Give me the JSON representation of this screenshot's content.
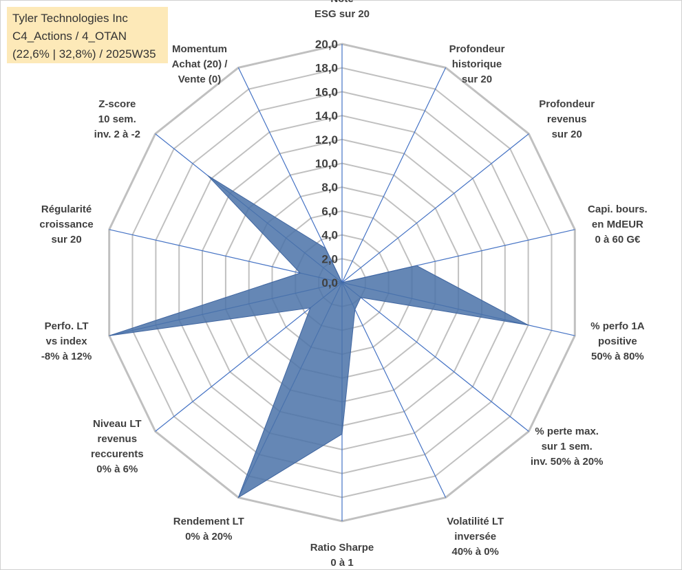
{
  "info": {
    "line1": "Tyler Technologies Inc",
    "line2": "C4_Actions / 4_OTAN",
    "line3": "(22,6% | 32,8%) / 2025W35"
  },
  "colors": {
    "grid": "#c0c0c0",
    "spoke": "#4472c4",
    "fill": "#4a72a8",
    "text": "#404040"
  },
  "chart_data": {
    "type": "radar",
    "title": "",
    "rmin": 0,
    "rmax": 20,
    "tick_step": 2,
    "tick_labels": [
      "0,0",
      "2,0",
      "4,0",
      "6,0",
      "8,0",
      "10,0",
      "12,0",
      "14,0",
      "16,0",
      "18,0",
      "20,0"
    ],
    "axes": [
      {
        "label": [
          "Note",
          "ESG sur 20"
        ],
        "value": 0
      },
      {
        "label": [
          "Profondeur",
          "historique",
          "sur 20"
        ],
        "value": 0
      },
      {
        "label": [
          "Profondeur",
          "revenus",
          "sur 20"
        ],
        "value": 0
      },
      {
        "label": [
          "Capi. bours.",
          "en MdEUR",
          "0 à 60 G€"
        ],
        "value": 6.4
      },
      {
        "label": [
          "% perfo 1A",
          "positive",
          "50% à 80%"
        ],
        "value": 16
      },
      {
        "label": [
          "% perte max.",
          "sur 1 sem.",
          "inv. 50% à 20%"
        ],
        "value": 2
      },
      {
        "label": [
          "Volatilité LT",
          "inversée",
          "40% à 0%"
        ],
        "value": 2.5
      },
      {
        "label": [
          "Ratio Sharpe",
          "0 à 1"
        ],
        "value": 12.7
      },
      {
        "label": [
          "Rendement LT",
          "0% à 20%"
        ],
        "value": 20
      },
      {
        "label": [
          "Niveau LT",
          "revenus",
          "reccurents",
          "0% à 6%"
        ],
        "value": 3.4
      },
      {
        "label": [
          "Perfo. LT",
          "vs index",
          "-8% à 12%"
        ],
        "value": 20
      },
      {
        "label": [
          "Régularité",
          "croissance",
          "sur 20"
        ],
        "value": 3.6
      },
      {
        "label": [
          "Z-score",
          "10 sem.",
          "inv. 2 à -2"
        ],
        "value": 14.4
      },
      {
        "label": [
          "Momentum",
          "Achat (20) /",
          "Vente (0)"
        ],
        "value": 3.2
      }
    ]
  }
}
